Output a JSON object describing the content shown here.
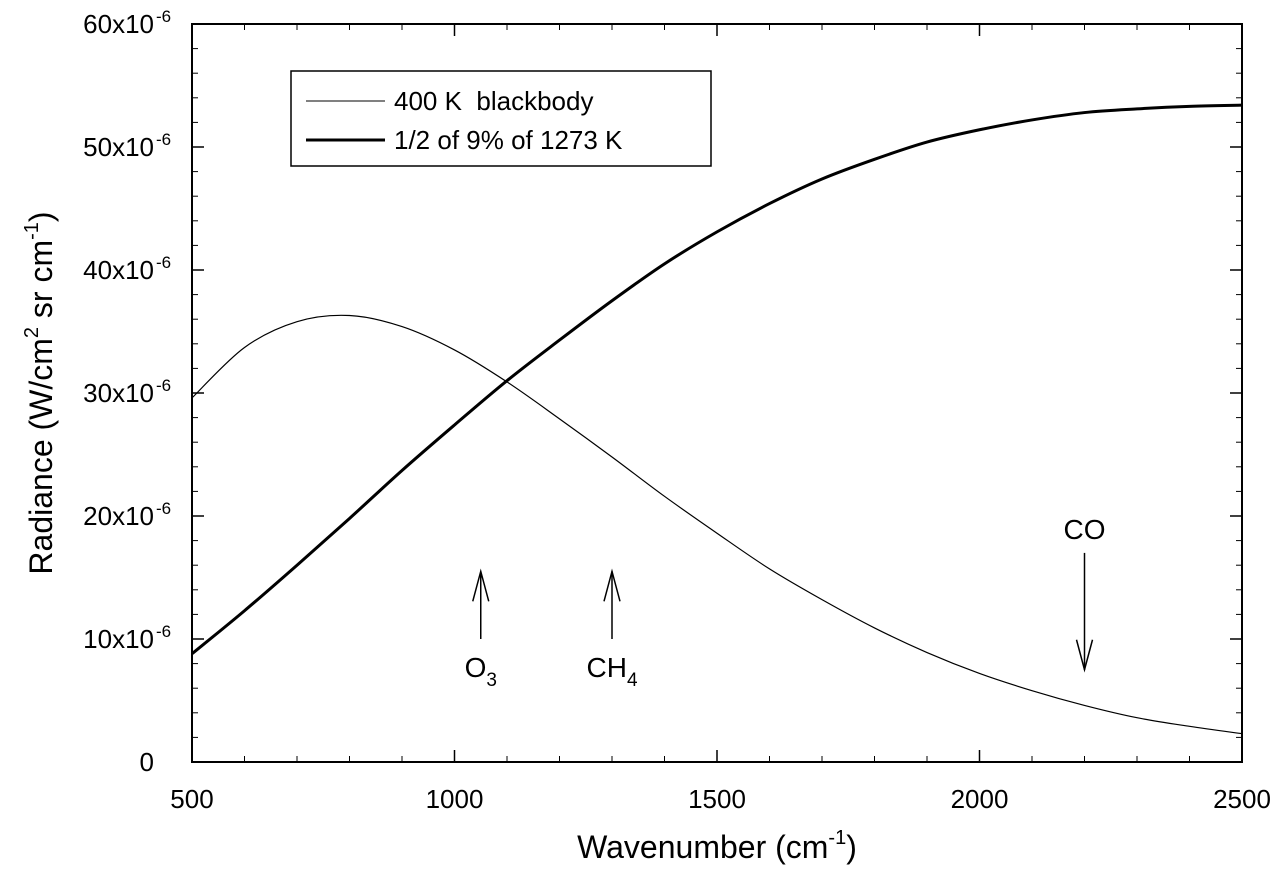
{
  "chart_data": {
    "type": "line",
    "title": "",
    "xlabel": "Wavenumber (cm",
    "xlabel_sup": "-1",
    "xlabel_tail": ")",
    "ylabel": "Radiance (W/cm",
    "ylabel_sup1": "2",
    "ylabel_mid": " sr cm",
    "ylabel_sup2": "-1",
    "ylabel_tail": ")",
    "xlim": [
      500,
      2500
    ],
    "ylim": [
      0,
      6e-05
    ],
    "x_ticks": [
      {
        "value": 500,
        "label": "500"
      },
      {
        "value": 1000,
        "label": "1000"
      },
      {
        "value": 1500,
        "label": "1500"
      },
      {
        "value": 2000,
        "label": "2000"
      },
      {
        "value": 2500,
        "label": "2500"
      }
    ],
    "y_ticks": [
      {
        "value": 0,
        "label": "0",
        "sup": ""
      },
      {
        "value": 1e-05,
        "label": "10x10",
        "sup": "-6"
      },
      {
        "value": 2e-05,
        "label": "20x10",
        "sup": "-6"
      },
      {
        "value": 3e-05,
        "label": "30x10",
        "sup": "-6"
      },
      {
        "value": 4e-05,
        "label": "40x10",
        "sup": "-6"
      },
      {
        "value": 5e-05,
        "label": "50x10",
        "sup": "-6"
      },
      {
        "value": 6e-05,
        "label": "60x10",
        "sup": "-6"
      }
    ],
    "grid": false,
    "legend_position": "top-left",
    "series": [
      {
        "name": "400 K  blackbody",
        "line": "thin",
        "x": [
          500,
          600,
          700,
          800,
          900,
          1000,
          1100,
          1200,
          1300,
          1400,
          1500,
          1600,
          1700,
          1800,
          1900,
          2000,
          2100,
          2200,
          2300,
          2400,
          2500
        ],
        "y": [
          2.96e-05,
          3.37e-05,
          3.58e-05,
          3.63e-05,
          3.54e-05,
          3.35e-05,
          3.09e-05,
          2.79e-05,
          2.48e-05,
          2.16e-05,
          1.86e-05,
          1.57e-05,
          1.32e-05,
          1.09e-05,
          8.9e-06,
          7.2e-06,
          5.8e-06,
          4.6e-06,
          3.6e-06,
          2.9e-06,
          2.3e-06
        ]
      },
      {
        "name": "1/2 of 9% of 1273 K",
        "line": "thick",
        "x": [
          500,
          600,
          700,
          800,
          900,
          1000,
          1100,
          1200,
          1300,
          1400,
          1500,
          1600,
          1700,
          1800,
          1900,
          2000,
          2100,
          2200,
          2300,
          2400,
          2500
        ],
        "y": [
          8.8e-06,
          1.23e-05,
          1.6e-05,
          1.98e-05,
          2.37e-05,
          2.74e-05,
          3.1e-05,
          3.43e-05,
          3.75e-05,
          4.05e-05,
          4.31e-05,
          4.54e-05,
          4.74e-05,
          4.9e-05,
          5.04e-05,
          5.14e-05,
          5.22e-05,
          5.28e-05,
          5.31e-05,
          5.33e-05,
          5.34e-05
        ]
      }
    ],
    "annotations": [
      {
        "name": "o3",
        "text": "O",
        "sub": "3",
        "x": 1050,
        "y_from": 1e-05,
        "y_to": 1.55e-05,
        "direction": "up"
      },
      {
        "name": "ch4",
        "text": "CH",
        "sub": "4",
        "x": 1300,
        "y_from": 1e-05,
        "y_to": 1.55e-05,
        "direction": "up"
      },
      {
        "name": "co",
        "text": "CO",
        "sub": "",
        "x": 2200,
        "y_from": 1.7e-05,
        "y_to": 7.5e-06,
        "direction": "down"
      }
    ]
  }
}
